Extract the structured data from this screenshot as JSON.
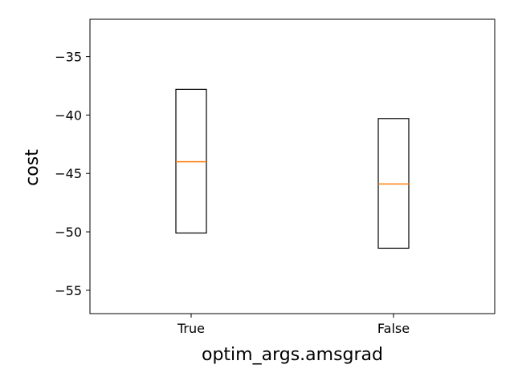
{
  "chart_data": {
    "type": "box",
    "title": "",
    "xlabel": "optim_args.amsgrad",
    "ylabel": "cost",
    "categories": [
      "True",
      "False"
    ],
    "boxes": [
      {
        "category": "True",
        "q1": -50.1,
        "median": -44.0,
        "q3": -37.8
      },
      {
        "category": "False",
        "q1": -51.4,
        "median": -45.9,
        "q3": -40.3
      }
    ],
    "ylim": [
      -57.0,
      -31.8
    ],
    "yticks": [
      -35,
      -40,
      -45,
      -50,
      -55
    ],
    "ytick_labels": [
      "−35",
      "−40",
      "−45",
      "−50",
      "−55"
    ],
    "grid": false,
    "legend": false,
    "colors": {
      "box_edge": "#000000",
      "median": "#ff7f0e",
      "frame": "#000000"
    }
  }
}
